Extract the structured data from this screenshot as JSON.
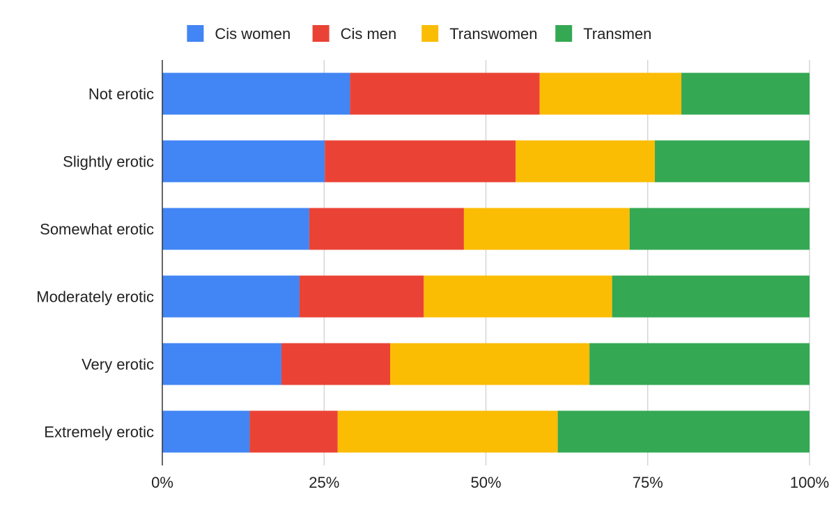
{
  "chart_data": {
    "type": "bar",
    "orientation": "horizontal",
    "stacked": "percent",
    "categories": [
      "Not erotic",
      "Slightly erotic",
      "Somewhat erotic",
      "Moderately erotic",
      "Very erotic",
      "Extremely erotic"
    ],
    "series": [
      {
        "name": "Cis women",
        "color": "#4285F4",
        "values": [
          29.0,
          25.1,
          22.7,
          21.2,
          18.4,
          13.5
        ]
      },
      {
        "name": "Cis men",
        "color": "#EA4335",
        "values": [
          29.3,
          29.5,
          23.9,
          19.2,
          16.8,
          13.6
        ]
      },
      {
        "name": "Transwomen",
        "color": "#FBBC04",
        "values": [
          21.9,
          21.5,
          25.6,
          29.1,
          30.8,
          34.0
        ]
      },
      {
        "name": "Transmen",
        "color": "#34A853",
        "values": [
          19.8,
          23.9,
          27.8,
          30.5,
          34.0,
          38.9
        ]
      }
    ],
    "xaxis": {
      "ticks": [
        "0%",
        "25%",
        "50%",
        "75%",
        "100%"
      ],
      "range": [
        0,
        100
      ]
    },
    "legend_position": "top",
    "gridlines": true,
    "title": "",
    "xlabel": "",
    "ylabel": ""
  }
}
